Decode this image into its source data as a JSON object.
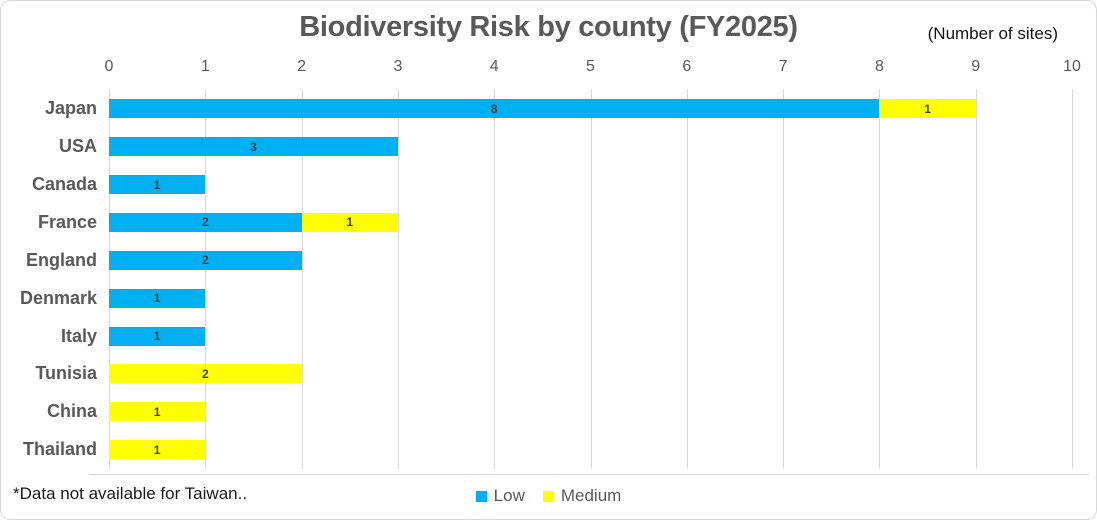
{
  "title": "Biodiversity Risk by county (FY2025)",
  "axis_note": "(Number of sites)",
  "footnote": "*Data not available for Taiwan..",
  "colors": {
    "low": "#00b0f0",
    "medium": "#ffff00",
    "gridline": "#d9d9d9",
    "axis_text": "#595959",
    "data_label": "#3f3f3f"
  },
  "legend": [
    {
      "name": "Low",
      "color": "#00b0f0"
    },
    {
      "name": "Medium",
      "color": "#ffff00"
    }
  ],
  "chart_data": {
    "type": "bar",
    "orientation": "horizontal",
    "stacked": true,
    "title": "Biodiversity Risk by county (FY2025)",
    "units_note": "(Number of sites)",
    "categories": [
      "Japan",
      "USA",
      "Canada",
      "France",
      "England",
      "Denmark",
      "Italy",
      "Tunisia",
      "China",
      "Thailand"
    ],
    "series": [
      {
        "name": "Low",
        "color": "#00b0f0",
        "values": [
          8,
          3,
          1,
          2,
          2,
          1,
          1,
          0,
          0,
          0
        ]
      },
      {
        "name": "Medium",
        "color": "#ffff00",
        "values": [
          1,
          0,
          0,
          1,
          0,
          0,
          0,
          2,
          1,
          1
        ]
      }
    ],
    "totals": [
      9,
      3,
      1,
      3,
      2,
      1,
      1,
      2,
      1,
      1
    ],
    "xlim": [
      0,
      10
    ],
    "xticks": [
      0,
      1,
      2,
      3,
      4,
      5,
      6,
      7,
      8,
      9,
      10
    ],
    "axis_position": "top",
    "grid": true,
    "legend_position": "bottom"
  }
}
